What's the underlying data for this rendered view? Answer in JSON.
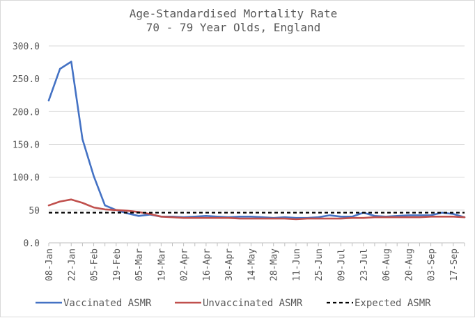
{
  "chart_data": {
    "type": "line",
    "title": [
      "Age-Standardised Mortality Rate",
      "70 - 79 Year Olds, England"
    ],
    "xlabel": "",
    "ylabel": "",
    "ylim": [
      0,
      300
    ],
    "ytick_labels": [
      "0.0",
      "50",
      "100.0",
      "150.0",
      "200.0",
      "250.0",
      "300.0"
    ],
    "ytick_values": [
      0,
      50,
      100,
      150,
      200,
      250,
      300
    ],
    "grid": true,
    "legend_position": "bottom",
    "x": [
      "08-Jan",
      "15-Jan",
      "22-Jan",
      "29-Jan",
      "05-Feb",
      "12-Feb",
      "19-Feb",
      "26-Feb",
      "05-Mar",
      "12-Mar",
      "19-Mar",
      "26-Mar",
      "02-Apr",
      "09-Apr",
      "16-Apr",
      "23-Apr",
      "30-Apr",
      "07-May",
      "14-May",
      "21-May",
      "28-May",
      "04-Jun",
      "11-Jun",
      "18-Jun",
      "25-Jun",
      "02-Jul",
      "09-Jul",
      "16-Jul",
      "23-Jul",
      "30-Jul",
      "06-Aug",
      "13-Aug",
      "20-Aug",
      "27-Aug",
      "03-Sep",
      "10-Sep",
      "17-Sep",
      "24-Sep"
    ],
    "xtick_labels": [
      "08-Jan",
      "22-Jan",
      "05-Feb",
      "19-Feb",
      "05-Mar",
      "19-Mar",
      "02-Apr",
      "16-Apr",
      "30-Apr",
      "14-May",
      "28-May",
      "11-Jun",
      "25-Jun",
      "09-Jul",
      "23-Jul",
      "06-Aug",
      "20-Aug",
      "03-Sep",
      "17-Sep"
    ],
    "series": [
      {
        "name": "Vaccinated ASMR",
        "color": "#4472c4",
        "style": "solid",
        "values": [
          217,
          265,
          276,
          158,
          102,
          57,
          50,
          45,
          41,
          43,
          40,
          40,
          39,
          40,
          41,
          40,
          39,
          40,
          40,
          39,
          38,
          39,
          38,
          38,
          39,
          42,
          40,
          40,
          46,
          41,
          40,
          41,
          42,
          42,
          42,
          46,
          44,
          39
        ]
      },
      {
        "name": "Unvaccinated ASMR",
        "color": "#c0504d",
        "style": "solid",
        "values": [
          57,
          63,
          66,
          61,
          54,
          51,
          50,
          49,
          47,
          44,
          40,
          39,
          38,
          38,
          38,
          38,
          38,
          37,
          37,
          37,
          37,
          37,
          36,
          37,
          37,
          37,
          37,
          38,
          38,
          39,
          39,
          39,
          39,
          39,
          40,
          40,
          40,
          39
        ]
      },
      {
        "name": "Expected ASMR",
        "color": "#000000",
        "style": "dashed",
        "values": [
          46,
          46,
          46,
          46,
          46,
          46,
          46,
          46,
          46,
          46,
          46,
          46,
          46,
          46,
          46,
          46,
          46,
          46,
          46,
          46,
          46,
          46,
          46,
          46,
          46,
          46,
          46,
          46,
          46,
          46,
          46,
          46,
          46,
          46,
          46,
          46,
          46,
          46
        ]
      }
    ]
  }
}
